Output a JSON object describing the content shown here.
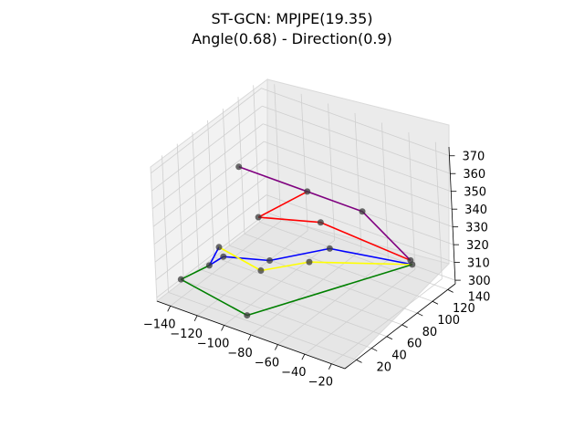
{
  "title": {
    "line1": "ST-GCN: MPJPE(19.35)",
    "line2": "Angle(0.68) - Direction(0.9)"
  },
  "chart_data": {
    "type": "scatter3d",
    "title": "ST-GCN: MPJPE(19.35)\nAngle(0.68) - Direction(0.9)",
    "xlabel": "",
    "ylabel": "",
    "zlabel": "",
    "xlim": [
      -150,
      -10
    ],
    "ylim": [
      5,
      150
    ],
    "zlim": [
      298,
      375
    ],
    "grid": true,
    "x_ticks": [
      "−140",
      "−120",
      "−100",
      "−80",
      "−60",
      "−40",
      "−20"
    ],
    "y_ticks": [
      "20",
      "40",
      "60",
      "80",
      "100",
      "120",
      "140"
    ],
    "z_ticks": [
      "300",
      "310",
      "320",
      "330",
      "340",
      "350",
      "360",
      "370"
    ],
    "joints": [
      {
        "x": -30,
        "y": 130,
        "z": 310
      },
      {
        "x": -30,
        "y": 128,
        "z": 313
      },
      {
        "x": -90,
        "y": 100,
        "z": 305
      },
      {
        "x": -115,
        "y": 80,
        "z": 300
      },
      {
        "x": -90,
        "y": 18,
        "z": 302
      },
      {
        "x": -140,
        "y": 20,
        "z": 308
      },
      {
        "x": -130,
        "y": 40,
        "z": 312
      },
      {
        "x": -125,
        "y": 45,
        "z": 322
      },
      {
        "x": -80,
        "y": 110,
        "z": 312
      },
      {
        "x": -105,
        "y": 75,
        "z": 310
      },
      {
        "x": -125,
        "y": 50,
        "z": 315
      },
      {
        "x": -115,
        "y": 80,
        "z": 330
      },
      {
        "x": -95,
        "y": 110,
        "z": 340
      },
      {
        "x": -140,
        "y": 100,
        "z": 345
      },
      {
        "x": -60,
        "y": 120,
        "z": 335
      },
      {
        "x": -80,
        "y": 100,
        "z": 330
      }
    ],
    "bones": [
      {
        "from": 0,
        "to": 8,
        "color": "#0000ff"
      },
      {
        "from": 8,
        "to": 9,
        "color": "#0000ff"
      },
      {
        "from": 9,
        "to": 10,
        "color": "#0000ff"
      },
      {
        "from": 10,
        "to": 6,
        "color": "#0000ff"
      },
      {
        "from": 6,
        "to": 7,
        "color": "#0000ff"
      },
      {
        "from": 0,
        "to": 2,
        "color": "#ffff00"
      },
      {
        "from": 2,
        "to": 3,
        "color": "#ffff00"
      },
      {
        "from": 3,
        "to": 7,
        "color": "#ffff00"
      },
      {
        "from": 0,
        "to": 4,
        "color": "#008000"
      },
      {
        "from": 4,
        "to": 5,
        "color": "#008000"
      },
      {
        "from": 5,
        "to": 6,
        "color": "#008000"
      },
      {
        "from": 1,
        "to": 15,
        "color": "#ff0000"
      },
      {
        "from": 15,
        "to": 11,
        "color": "#ff0000"
      },
      {
        "from": 11,
        "to": 12,
        "color": "#ff0000"
      },
      {
        "from": 1,
        "to": 14,
        "color": "#800080"
      },
      {
        "from": 14,
        "to": 12,
        "color": "#800080"
      },
      {
        "from": 12,
        "to": 13,
        "color": "#800080"
      }
    ]
  }
}
